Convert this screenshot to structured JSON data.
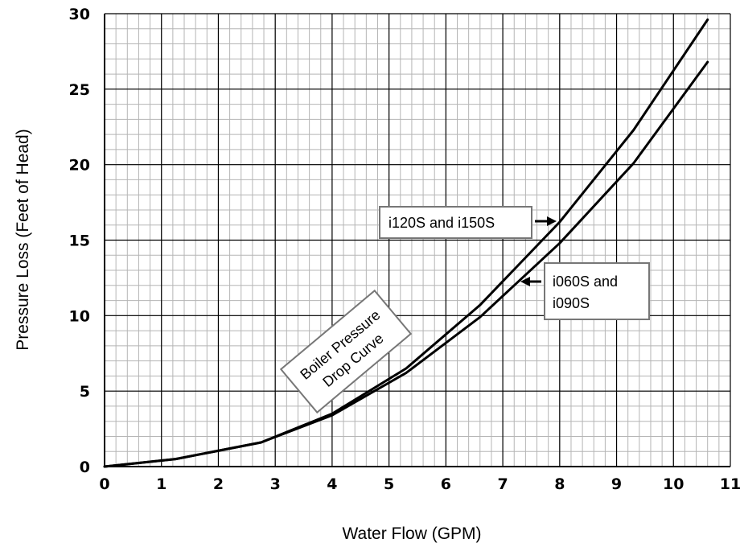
{
  "chart_data": {
    "type": "line",
    "xlabel": "Water Flow (GPM)",
    "ylabel": "Pressure Loss (Feet of Head)",
    "xlim": [
      0,
      11
    ],
    "ylim": [
      0,
      30
    ],
    "x_ticks": [
      0,
      1,
      2,
      3,
      4,
      5,
      6,
      7,
      8,
      9,
      10,
      11
    ],
    "y_ticks": [
      0,
      5,
      10,
      15,
      20,
      25,
      30
    ],
    "grid": true,
    "minor_grid_x_step": 0.2,
    "minor_grid_y_step": 1,
    "series": [
      {
        "name": "i120S and i150S",
        "x": [
          0,
          1.25,
          2.75,
          4.0,
          5.3,
          6.6,
          8.0,
          9.3,
          10.6
        ],
        "y": [
          0,
          0.5,
          1.6,
          3.5,
          6.5,
          10.7,
          16.2,
          22.3,
          29.6
        ]
      },
      {
        "name": "i060S and i090S",
        "x": [
          0,
          1.25,
          2.75,
          4.0,
          5.3,
          6.6,
          8.0,
          9.3,
          10.6
        ],
        "y": [
          0,
          0.5,
          1.6,
          3.4,
          6.2,
          9.9,
          14.8,
          20.1,
          26.8
        ]
      }
    ],
    "annotations": [
      {
        "lines": [
          "i120S and i150S"
        ],
        "series": 0
      },
      {
        "lines": [
          "i060S and",
          "i090S"
        ],
        "series": 1
      },
      {
        "lines": [
          "Boiler Pressure",
          "Drop Curve"
        ]
      }
    ]
  }
}
